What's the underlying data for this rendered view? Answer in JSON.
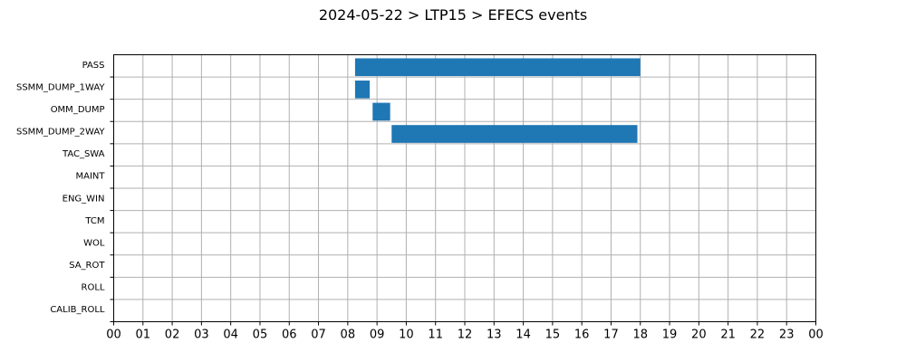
{
  "chart_data": {
    "type": "gantt",
    "title": "2024-05-22 > LTP15 > EFECS events",
    "xlabel": "",
    "ylabel": "",
    "xlim": [
      0,
      24
    ],
    "x_unit": "hour",
    "x_tick_labels": [
      "00",
      "01",
      "02",
      "03",
      "04",
      "05",
      "06",
      "07",
      "08",
      "09",
      "10",
      "11",
      "12",
      "13",
      "14",
      "15",
      "16",
      "17",
      "18",
      "19",
      "20",
      "21",
      "22",
      "23",
      "00"
    ],
    "categories": [
      "PASS",
      "SSMM_DUMP_1WAY",
      "OMM_DUMP",
      "SSMM_DUMP_2WAY",
      "TAC_SWA",
      "MAINT",
      "ENG_WIN",
      "TCM",
      "WOL",
      "SA_ROT",
      "ROLL",
      "CALIB_ROLL"
    ],
    "events": [
      {
        "category": "PASS",
        "start": 8.25,
        "end": 18.0
      },
      {
        "category": "SSMM_DUMP_1WAY",
        "start": 8.25,
        "end": 8.75
      },
      {
        "category": "OMM_DUMP",
        "start": 8.85,
        "end": 9.45
      },
      {
        "category": "SSMM_DUMP_2WAY",
        "start": 9.5,
        "end": 17.9
      }
    ],
    "grid": true,
    "bar_color": "#1f77b4"
  }
}
